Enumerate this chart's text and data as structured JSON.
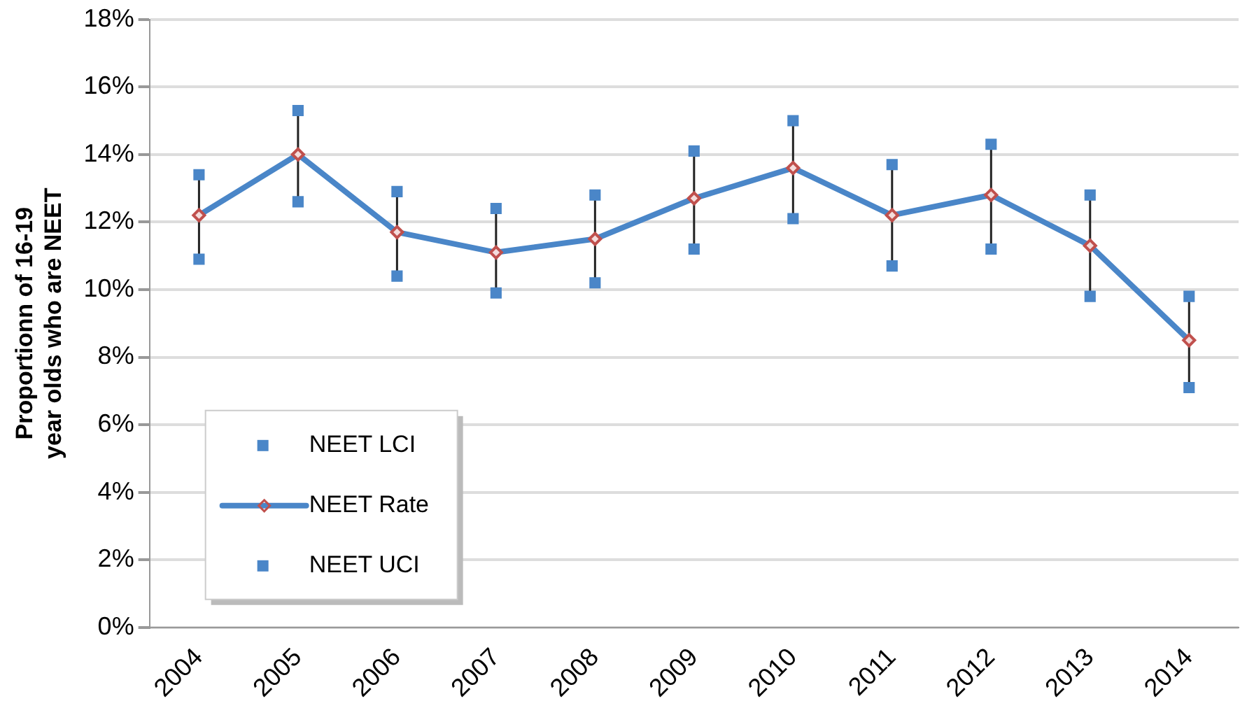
{
  "chart_data": {
    "type": "line",
    "ylabel": "Proportionn of 16-19 year olds who are NEET",
    "categories": [
      "2004",
      "2005",
      "2006",
      "2007",
      "2008",
      "2009",
      "2010",
      "2011",
      "2012",
      "2013",
      "2014"
    ],
    "series": [
      {
        "name": "NEET LCI",
        "type": "scatter",
        "marker": "square",
        "color": "#4a86c8",
        "values": [
          10.9,
          12.6,
          10.4,
          9.9,
          10.2,
          11.2,
          12.1,
          10.7,
          11.2,
          9.8,
          7.1
        ]
      },
      {
        "name": "NEET Rate",
        "marker": "diamond",
        "color": "#4a86c8",
        "values": [
          12.2,
          14.0,
          11.7,
          11.1,
          11.5,
          12.7,
          13.6,
          12.2,
          12.8,
          11.3,
          8.5
        ]
      },
      {
        "name": "NEET UCI",
        "type": "scatter",
        "marker": "square",
        "color": "#4a86c8",
        "values": [
          13.4,
          15.3,
          12.9,
          12.4,
          12.8,
          14.1,
          15.0,
          13.7,
          14.3,
          12.8,
          9.8
        ]
      }
    ],
    "ylim": [
      0,
      18
    ],
    "yticks": [
      {
        "value": 0,
        "label": "0%"
      },
      {
        "value": 2,
        "label": "2%"
      },
      {
        "value": 4,
        "label": "4%"
      },
      {
        "value": 6,
        "label": "6%"
      },
      {
        "value": 8,
        "label": "8%"
      },
      {
        "value": 10,
        "label": "10%"
      },
      {
        "value": 12,
        "label": "12%"
      },
      {
        "value": 14,
        "label": "14%"
      },
      {
        "value": 16,
        "label": "16%"
      },
      {
        "value": 18,
        "label": "18%"
      }
    ],
    "grid": "y",
    "legend": "bottom left"
  }
}
